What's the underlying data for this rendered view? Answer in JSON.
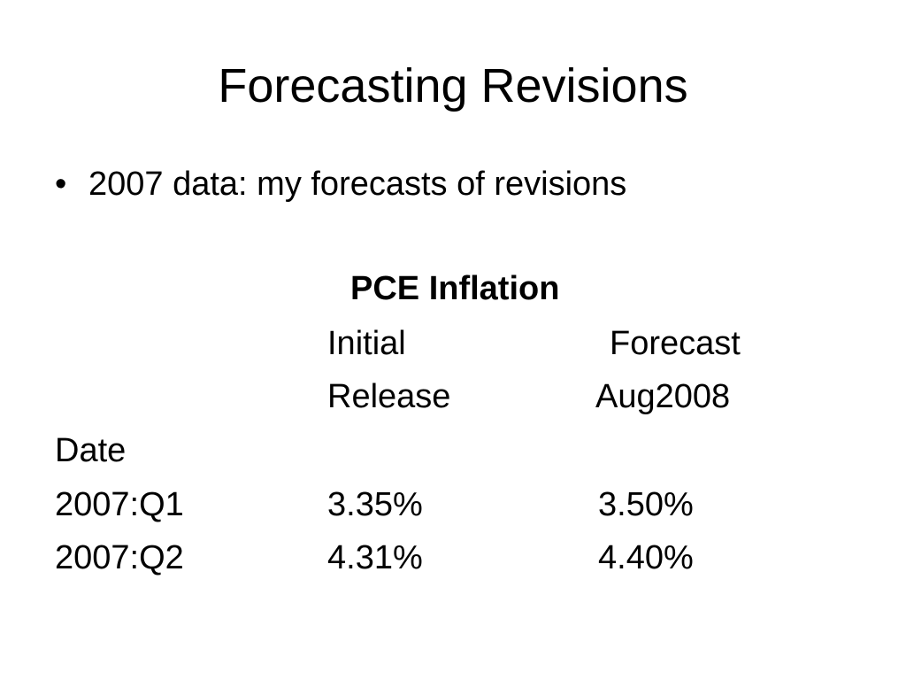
{
  "slide": {
    "title": "Forecasting Revisions",
    "bullet_marker": "•",
    "bullet": "2007 data: my forecasts of revisions"
  },
  "table": {
    "title": "PCE Inflation",
    "col_initial_line1": "Initial",
    "col_initial_line2": "Release",
    "col_forecast_line1": "Forecast",
    "col_forecast_line2": "Aug2008",
    "row_header": "Date",
    "rows": [
      {
        "date": "2007:Q1",
        "initial": "3.35%",
        "forecast": "3.50%"
      },
      {
        "date": "2007:Q2",
        "initial": "4.31%",
        "forecast": "4.40%"
      }
    ]
  }
}
